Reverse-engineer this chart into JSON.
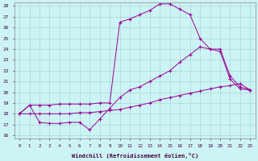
{
  "xlabel": "Windchill (Refroidissement éolien,°C)",
  "bg_color": "#cdf4f4",
  "grid_color": "#a8d8d8",
  "line_color": "#990099",
  "xmin": 0,
  "xmax": 23,
  "ymin": 16,
  "ymax": 28,
  "yticks": [
    16,
    17,
    18,
    19,
    20,
    21,
    22,
    23,
    24,
    25,
    26,
    27,
    28
  ],
  "line_top_x": [
    0,
    1,
    2,
    3,
    4,
    5,
    6,
    7,
    8,
    9,
    10,
    11,
    12,
    13,
    14,
    15,
    16,
    17,
    18,
    19,
    20,
    21,
    22,
    23
  ],
  "line_top_y": [
    18.0,
    18.8,
    18.8,
    18.8,
    18.9,
    18.9,
    18.9,
    18.9,
    19.0,
    19.0,
    26.5,
    26.8,
    27.2,
    27.6,
    28.2,
    28.2,
    27.7,
    27.2,
    25.0,
    24.0,
    24.0,
    21.5,
    20.5,
    20.2
  ],
  "line_mid_x": [
    0,
    1,
    2,
    3,
    4,
    5,
    6,
    7,
    8,
    9,
    10,
    11,
    12,
    13,
    14,
    15,
    16,
    17,
    18,
    19,
    20,
    21,
    22,
    23
  ],
  "line_mid_y": [
    18.0,
    18.8,
    17.2,
    17.1,
    17.1,
    17.2,
    17.2,
    16.5,
    17.5,
    18.5,
    19.5,
    20.2,
    20.5,
    21.0,
    21.5,
    22.0,
    22.8,
    23.5,
    24.2,
    24.0,
    23.8,
    21.2,
    20.3,
    20.2
  ],
  "line_bot_x": [
    0,
    1,
    2,
    3,
    4,
    5,
    6,
    7,
    8,
    9,
    10,
    11,
    12,
    13,
    14,
    15,
    16,
    17,
    18,
    19,
    20,
    21,
    22,
    23
  ],
  "line_bot_y": [
    18.0,
    18.0,
    18.0,
    18.0,
    18.0,
    18.0,
    18.1,
    18.1,
    18.2,
    18.3,
    18.4,
    18.6,
    18.8,
    19.0,
    19.3,
    19.5,
    19.7,
    19.9,
    20.1,
    20.3,
    20.5,
    20.6,
    20.8,
    20.2
  ]
}
